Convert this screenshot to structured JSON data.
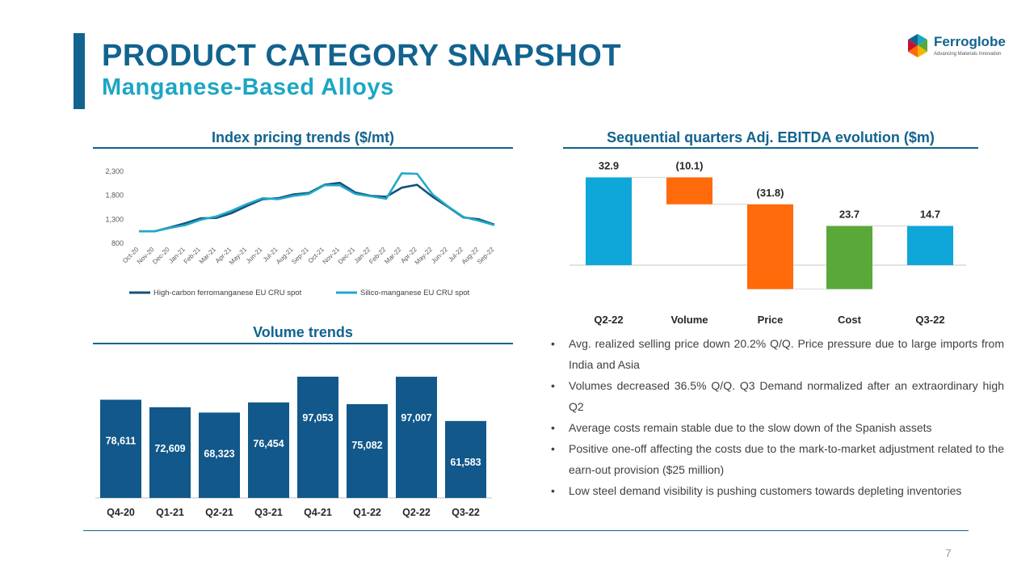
{
  "header": {
    "title": "PRODUCT CATEGORY SNAPSHOT",
    "subtitle": "Manganese-Based Alloys"
  },
  "logo": {
    "name": "Ferroglobe",
    "tagline": "Advancing Materials Innovation"
  },
  "sections": {
    "index_title": "Index pricing trends ($/mt)",
    "ebitda_title": "Sequential quarters Adj. EBITDA evolution ($m)",
    "volume_title": "Volume trends"
  },
  "bullets": [
    "Avg. realized selling price down 20.2% Q/Q. Price pressure due to large imports from India and Asia",
    "Volumes decreased 36.5% Q/Q. Q3 Demand normalized after an extraordinary high Q2",
    "Average costs remain stable due to the slow down of the Spanish assets",
    "Positive one-off affecting the costs due to the mark-to-market adjustment related to the earn-out provision ($25 million)",
    "Low steel demand visibility is pushing customers towards depleting inventories"
  ],
  "page_number": "7",
  "colors": {
    "primary": "#12638f",
    "accent": "#1ca6c4",
    "line_dark": "#14507a",
    "line_light": "#21a9c9",
    "wf_blue": "#0fa6d9",
    "wf_orange": "#ff6a0a",
    "wf_green": "#5aa83a",
    "bar": "#12588a"
  },
  "chart_data": [
    {
      "id": "index",
      "type": "line",
      "title": "Index pricing trends ($/mt)",
      "categories": [
        "Oct-20",
        "Nov-20",
        "Dec-20",
        "Jan-21",
        "Feb-21",
        "Mar-21",
        "Apr-21",
        "May-21",
        "Jun-21",
        "Jul-21",
        "Aug-21",
        "Sep-21",
        "Oct-21",
        "Nov-21",
        "Dec-21",
        "Jan-22",
        "Feb-22",
        "Mar-22",
        "Apr-22",
        "May-22",
        "Jun-22",
        "Jul-22",
        "Aug-22",
        "Sep-22"
      ],
      "series": [
        {
          "name": "High-carbon ferromanganese EU CRU spot",
          "values": [
            1050,
            1050,
            1130,
            1220,
            1320,
            1330,
            1430,
            1580,
            1720,
            1740,
            1820,
            1850,
            2020,
            2060,
            1860,
            1790,
            1770,
            1960,
            2020,
            1770,
            1560,
            1340,
            1300,
            1190
          ]
        },
        {
          "name": "Silico-manganese EU CRU spot",
          "values": [
            1050,
            1050,
            1120,
            1180,
            1290,
            1360,
            1480,
            1620,
            1740,
            1720,
            1790,
            1830,
            2010,
            2010,
            1830,
            1780,
            1730,
            2260,
            2250,
            1820,
            1570,
            1350,
            1270,
            1180
          ]
        }
      ],
      "yticks": [
        800,
        1300,
        1800,
        2300
      ],
      "ylim": [
        800,
        2400
      ]
    },
    {
      "id": "ebitda",
      "type": "bar",
      "subtype": "waterfall",
      "title": "Sequential quarters Adj. EBITDA evolution ($m)",
      "categories": [
        "Q2-22",
        "Volume",
        "Price",
        "Cost",
        "Q3-22"
      ],
      "values": [
        32.9,
        -10.1,
        -31.8,
        23.7,
        14.7
      ],
      "labels": [
        "32.9",
        "(10.1)",
        "(31.8)",
        "23.7",
        "14.7"
      ]
    },
    {
      "id": "volume",
      "type": "bar",
      "title": "Volume trends",
      "categories": [
        "Q4-20",
        "Q1-21",
        "Q2-21",
        "Q3-21",
        "Q4-21",
        "Q1-22",
        "Q2-22",
        "Q3-22"
      ],
      "values": [
        78611,
        72609,
        68323,
        76454,
        97053,
        75082,
        97007,
        61583
      ],
      "labels": [
        "78,611",
        "72,609",
        "68,323",
        "76,454",
        "97,053",
        "75,082",
        "97,007",
        "61,583"
      ],
      "ylim": [
        0,
        97053
      ]
    }
  ]
}
